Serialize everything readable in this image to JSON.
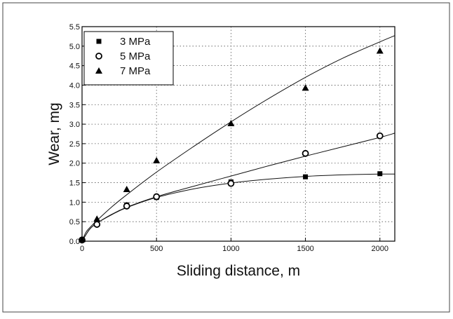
{
  "chart_data": {
    "type": "scatter",
    "xlabel": "Sliding distance, m",
    "ylabel": "Wear, mg",
    "xlim": [
      0,
      2100
    ],
    "ylim": [
      0,
      5.5
    ],
    "x_ticks": [
      0,
      500,
      1000,
      1500,
      2000
    ],
    "x_tick_labels": [
      "0",
      "500",
      "1000",
      "1500",
      "2000"
    ],
    "y_ticks": [
      0,
      0.5,
      1.0,
      1.5,
      2.0,
      2.5,
      3.0,
      3.5,
      4.0,
      4.5,
      5.0,
      5.5
    ],
    "y_tick_labels": [
      "0.0",
      "0.5",
      "1.0",
      "1.5",
      "2.0",
      "2.5",
      "3.0",
      "3.5",
      "4.0",
      "4.5",
      "5.0",
      "5.5"
    ],
    "grid": true,
    "legend_position": "top-left",
    "series": [
      {
        "name": "3 MPa",
        "marker": "square",
        "x": [
          0,
          100,
          300,
          500,
          1000,
          1500,
          2000
        ],
        "y": [
          0.03,
          0.45,
          0.93,
          1.12,
          1.52,
          1.65,
          1.73
        ],
        "fit_x": [
          0,
          50,
          100,
          200,
          300,
          500,
          750,
          1000,
          1250,
          1500,
          1750,
          2000,
          2100
        ],
        "fit_y": [
          0,
          0.3,
          0.46,
          0.68,
          0.86,
          1.12,
          1.34,
          1.49,
          1.59,
          1.66,
          1.7,
          1.72,
          1.72
        ]
      },
      {
        "name": "5 MPa",
        "marker": "circle",
        "x": [
          0,
          100,
          300,
          500,
          1000,
          1500,
          2000
        ],
        "y": [
          0.03,
          0.43,
          0.9,
          1.14,
          1.48,
          2.25,
          2.7
        ],
        "fit_x": [
          0,
          50,
          100,
          200,
          300,
          500,
          750,
          1000,
          1250,
          1500,
          1750,
          2000,
          2100
        ],
        "fit_y": [
          0,
          0.3,
          0.46,
          0.69,
          0.87,
          1.14,
          1.41,
          1.67,
          1.93,
          2.18,
          2.42,
          2.66,
          2.77
        ]
      },
      {
        "name": "7 MPa",
        "marker": "triangle",
        "x": [
          0,
          100,
          300,
          500,
          1000,
          1500,
          2000
        ],
        "y": [
          0.05,
          0.57,
          1.33,
          2.07,
          3.02,
          3.93,
          4.88
        ],
        "fit_x": [
          0,
          25,
          50,
          100,
          200,
          300,
          500,
          750,
          1000,
          1250,
          1500,
          1750,
          2000,
          2100
        ],
        "fit_y": [
          0,
          0.22,
          0.34,
          0.53,
          0.88,
          1.19,
          1.77,
          2.43,
          3.06,
          3.65,
          4.2,
          4.69,
          5.11,
          5.27
        ]
      }
    ]
  }
}
